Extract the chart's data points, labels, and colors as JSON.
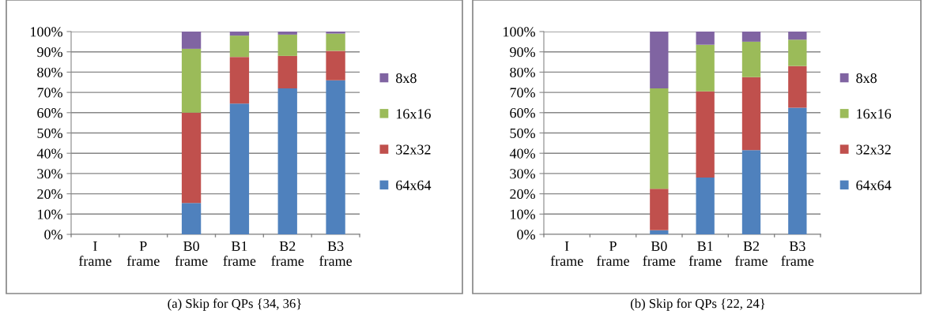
{
  "chart_data": [
    {
      "type": "bar",
      "stacked": true,
      "categories": [
        "I\nframe",
        "P\nframe",
        "B0\nframe",
        "B1\nframe",
        "B2\nframe",
        "B3\nframe"
      ],
      "ylim": [
        0,
        100
      ],
      "yticks": [
        {
          "value": 0,
          "label": "0%"
        },
        {
          "value": 10,
          "label": "10%"
        },
        {
          "value": 20,
          "label": "20%"
        },
        {
          "value": 30,
          "label": "30%"
        },
        {
          "value": 40,
          "label": "40%"
        },
        {
          "value": 50,
          "label": "50%"
        },
        {
          "value": 60,
          "label": "60%"
        },
        {
          "value": 70,
          "label": "70%"
        },
        {
          "value": 80,
          "label": "80%"
        },
        {
          "value": 90,
          "label": "90%"
        },
        {
          "value": 100,
          "label": "100%"
        }
      ],
      "grid": "y",
      "legend": "right",
      "annotations": [
        "(a) Skip for QPs {34, 36}"
      ],
      "series": [
        {
          "name": "64x64",
          "color": "#4f81bd",
          "values": [
            0,
            0,
            15.5,
            64.5,
            72,
            76
          ]
        },
        {
          "name": "32x32",
          "color": "#c0504d",
          "values": [
            0,
            0,
            44.5,
            23,
            16,
            14.5
          ]
        },
        {
          "name": "16x16",
          "color": "#9bbb59",
          "values": [
            0,
            0,
            31.5,
            10.5,
            10.5,
            8.5
          ]
        },
        {
          "name": "8x8",
          "color": "#8064a2",
          "values": [
            0,
            0,
            8.5,
            2,
            1.5,
            1
          ]
        }
      ]
    },
    {
      "type": "bar",
      "stacked": true,
      "categories": [
        "I\nframe",
        "P\nframe",
        "B0\nframe",
        "B1\nframe",
        "B2\nframe",
        "B3\nframe"
      ],
      "ylim": [
        0,
        100
      ],
      "yticks": [
        {
          "value": 0,
          "label": "0%"
        },
        {
          "value": 10,
          "label": "10%"
        },
        {
          "value": 20,
          "label": "20%"
        },
        {
          "value": 30,
          "label": "30%"
        },
        {
          "value": 40,
          "label": "40%"
        },
        {
          "value": 50,
          "label": "50%"
        },
        {
          "value": 60,
          "label": "60%"
        },
        {
          "value": 70,
          "label": "70%"
        },
        {
          "value": 80,
          "label": "80%"
        },
        {
          "value": 90,
          "label": "90%"
        },
        {
          "value": 100,
          "label": "100%"
        }
      ],
      "grid": "y",
      "legend": "right",
      "annotations": [
        "(b) Skip for QPs {22, 24}"
      ],
      "series": [
        {
          "name": "64x64",
          "color": "#4f81bd",
          "values": [
            0,
            0,
            2,
            28,
            41.5,
            62.5
          ]
        },
        {
          "name": "32x32",
          "color": "#c0504d",
          "values": [
            0,
            0,
            20.5,
            42.5,
            36,
            20.5
          ]
        },
        {
          "name": "16x16",
          "color": "#9bbb59",
          "values": [
            0,
            0,
            49.5,
            23,
            17.5,
            13
          ]
        },
        {
          "name": "8x8",
          "color": "#8064a2",
          "values": [
            0,
            0,
            28,
            6.5,
            5,
            4
          ]
        }
      ]
    }
  ]
}
